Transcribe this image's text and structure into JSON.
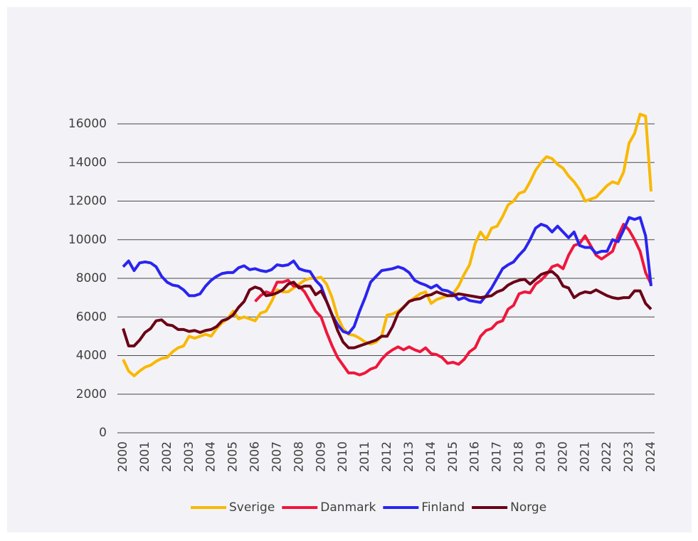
{
  "chart_data": {
    "type": "line",
    "x": [
      2000,
      2000.25,
      2000.5,
      2000.75,
      2001,
      2001.25,
      2001.5,
      2001.75,
      2002,
      2002.25,
      2002.5,
      2002.75,
      2003,
      2003.25,
      2003.5,
      2003.75,
      2004,
      2004.25,
      2004.5,
      2004.75,
      2005,
      2005.25,
      2005.5,
      2005.75,
      2006,
      2006.25,
      2006.5,
      2006.75,
      2007,
      2007.25,
      2007.5,
      2007.75,
      2008,
      2008.25,
      2008.5,
      2008.75,
      2009,
      2009.25,
      2009.5,
      2009.75,
      2010,
      2010.25,
      2010.5,
      2010.75,
      2011,
      2011.25,
      2011.5,
      2011.75,
      2012,
      2012.25,
      2012.5,
      2012.75,
      2013,
      2013.25,
      2013.5,
      2013.75,
      2014,
      2014.25,
      2014.5,
      2014.75,
      2015,
      2015.25,
      2015.5,
      2015.75,
      2016,
      2016.25,
      2016.5,
      2016.75,
      2017,
      2017.25,
      2017.5,
      2017.75,
      2018,
      2018.25,
      2018.5,
      2018.75,
      2019,
      2019.25,
      2019.5,
      2019.75,
      2020,
      2020.25,
      2020.5,
      2020.75,
      2021,
      2021.25,
      2021.5,
      2021.75,
      2022,
      2022.25,
      2022.5,
      2022.75,
      2023,
      2023.25,
      2023.5,
      2023.75,
      2024
    ],
    "series": [
      {
        "name": "Sverige",
        "color": "#f9b800",
        "values": [
          3800,
          3200,
          2950,
          3200,
          3400,
          3500,
          3700,
          3850,
          3900,
          4200,
          4400,
          4500,
          5000,
          4900,
          5000,
          5100,
          5000,
          5400,
          5700,
          5900,
          6300,
          5900,
          6000,
          5900,
          5800,
          6200,
          6300,
          6800,
          7400,
          7300,
          7300,
          7500,
          7700,
          7900,
          8000,
          8000,
          8050,
          7700,
          7000,
          6000,
          5400,
          5100,
          5050,
          4900,
          4700,
          4600,
          4700,
          5000,
          6100,
          6150,
          6300,
          6500,
          6800,
          7000,
          7200,
          7300,
          6700,
          6900,
          7000,
          7100,
          7200,
          7600,
          8200,
          8700,
          9800,
          10400,
          10000,
          10600,
          10700,
          11200,
          11800,
          12000,
          12400,
          12500,
          13000,
          13600,
          14000,
          14300,
          14200,
          13900,
          13700,
          13300,
          13000,
          12600,
          12000,
          12100,
          12200,
          12500,
          12800,
          13000,
          12900,
          13500,
          15000,
          15500,
          16500,
          16400,
          12500
        ]
      },
      {
        "name": "Danmark",
        "color": "#f0163c",
        "values": [
          null,
          null,
          null,
          null,
          null,
          null,
          null,
          null,
          null,
          null,
          null,
          null,
          null,
          null,
          null,
          null,
          null,
          null,
          null,
          null,
          null,
          null,
          null,
          null,
          6800,
          7100,
          7300,
          7200,
          7800,
          7800,
          7900,
          7600,
          7600,
          7300,
          6800,
          6300,
          6000,
          5200,
          4500,
          3900,
          3500,
          3100,
          3100,
          3000,
          3100,
          3300,
          3400,
          3800,
          4100,
          4300,
          4450,
          4300,
          4450,
          4300,
          4200,
          4400,
          4100,
          4050,
          3900,
          3600,
          3650,
          3550,
          3800,
          4200,
          4400,
          5000,
          5300,
          5400,
          5700,
          5800,
          6400,
          6600,
          7200,
          7300,
          7250,
          7700,
          7900,
          8200,
          8600,
          8700,
          8500,
          9200,
          9700,
          9800,
          10200,
          9700,
          9200,
          9000,
          9200,
          9400,
          10200,
          10800,
          10500,
          10000,
          9400,
          8300,
          7700
        ]
      },
      {
        "name": "Finland",
        "color": "#2a24f0",
        "values": [
          8600,
          8900,
          8400,
          8800,
          8850,
          8800,
          8600,
          8100,
          7800,
          7650,
          7600,
          7400,
          7100,
          7100,
          7200,
          7600,
          7900,
          8100,
          8250,
          8300,
          8300,
          8550,
          8650,
          8450,
          8500,
          8400,
          8350,
          8450,
          8700,
          8650,
          8700,
          8900,
          8500,
          8400,
          8350,
          7900,
          7600,
          6800,
          6100,
          5600,
          5250,
          5150,
          5500,
          6300,
          7000,
          7800,
          8100,
          8400,
          8450,
          8500,
          8600,
          8500,
          8300,
          7900,
          7750,
          7650,
          7500,
          7650,
          7400,
          7350,
          7200,
          6900,
          7000,
          6850,
          6800,
          6750,
          7100,
          7500,
          8000,
          8500,
          8700,
          8850,
          9200,
          9500,
          10000,
          10600,
          10800,
          10700,
          10400,
          10700,
          10400,
          10100,
          10400,
          9700,
          9600,
          9600,
          9300,
          9400,
          9400,
          10000,
          9900,
          10500,
          11150,
          11050,
          11150,
          10200,
          7600
        ]
      },
      {
        "name": "Norge",
        "color": "#6b0016",
        "values": [
          5400,
          4500,
          4500,
          4800,
          5200,
          5400,
          5800,
          5850,
          5600,
          5550,
          5350,
          5350,
          5250,
          5300,
          5200,
          5300,
          5350,
          5500,
          5800,
          5900,
          6100,
          6500,
          6800,
          7400,
          7550,
          7450,
          7100,
          7150,
          7250,
          7400,
          7700,
          7800,
          7500,
          7600,
          7600,
          7150,
          7350,
          6800,
          6100,
          5300,
          4700,
          4400,
          4400,
          4500,
          4600,
          4700,
          4800,
          5000,
          5000,
          5500,
          6200,
          6500,
          6800,
          6900,
          6950,
          7100,
          7150,
          7300,
          7200,
          7100,
          7100,
          7200,
          7150,
          7100,
          7050,
          7000,
          7050,
          7100,
          7300,
          7400,
          7650,
          7800,
          7900,
          7950,
          7700,
          7950,
          8200,
          8300,
          8350,
          8100,
          7600,
          7500,
          7000,
          7200,
          7300,
          7250,
          7400,
          7250,
          7100,
          7000,
          6950,
          7000,
          7000,
          7350,
          7350,
          6700,
          6400
        ]
      }
    ],
    "xlim": [
      1999.74,
      2024.16
    ],
    "xticks": [
      2000,
      2001,
      2002,
      2003,
      2004,
      2005,
      2006,
      2007,
      2008,
      2009,
      2010,
      2011,
      2012,
      2013,
      2014,
      2015,
      2016,
      2017,
      2018,
      2019,
      2020,
      2021,
      2022,
      2023,
      2024
    ],
    "ylim": [
      0,
      16000
    ],
    "yticks": [
      0,
      2000,
      4000,
      6000,
      8000,
      10000,
      12000,
      14000,
      16000
    ],
    "grid": true,
    "legend": "bottom"
  }
}
